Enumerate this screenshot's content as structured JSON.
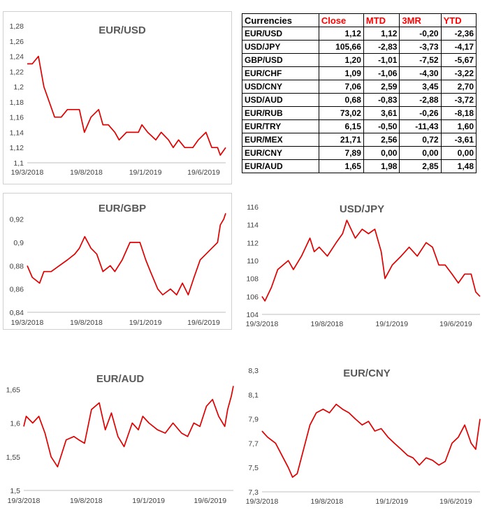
{
  "table": {
    "title": "Currencies",
    "headers": [
      "Close",
      "MTD",
      "3MR",
      "YTD"
    ],
    "rows": [
      {
        "pair": "EUR/USD",
        "values": [
          "1,12",
          "1,12",
          "-0,20",
          "-2,36"
        ]
      },
      {
        "pair": "USD/JPY",
        "values": [
          "105,66",
          "-2,83",
          "-3,73",
          "-4,17"
        ]
      },
      {
        "pair": "GBP/USD",
        "values": [
          "1,20",
          "-1,01",
          "-7,52",
          "-5,67"
        ]
      },
      {
        "pair": "EUR/CHF",
        "values": [
          "1,09",
          "-1,06",
          "-4,30",
          "-3,22"
        ]
      },
      {
        "pair": "USD/CNY",
        "values": [
          "7,06",
          "2,59",
          "3,45",
          "2,70"
        ]
      },
      {
        "pair": "USD/AUD",
        "values": [
          "0,68",
          "-0,83",
          "-2,88",
          "-3,72"
        ]
      },
      {
        "pair": "EUR/RUB",
        "values": [
          "73,02",
          "3,61",
          "-0,26",
          "-8,18"
        ]
      },
      {
        "pair": "EUR/TRY",
        "values": [
          "6,15",
          "-0,50",
          "-11,43",
          "1,60"
        ]
      },
      {
        "pair": "EUR/MEX",
        "values": [
          "21,71",
          "2,56",
          "0,72",
          "-3,61"
        ]
      },
      {
        "pair": "EUR/CNY",
        "values": [
          "7,89",
          "0,00",
          "0,00",
          "0,00"
        ]
      },
      {
        "pair": "EUR/AUD",
        "values": [
          "1,65",
          "1,98",
          "2,85",
          "1,48"
        ]
      }
    ]
  },
  "colors": {
    "line": "#e00000",
    "header_text": "#ff0000"
  },
  "chart_data": [
    {
      "type": "line",
      "title": "EUR/USD",
      "x_tick_labels": [
        "19/3/2018",
        "19/8/2018",
        "19/1/2019",
        "19/6/2019"
      ],
      "y_tick_labels": [
        "1,1",
        "1,12",
        "1,14",
        "1,16",
        "1,18",
        "1,2",
        "1,22",
        "1,24",
        "1,26",
        "1,28"
      ],
      "ylim": [
        1.1,
        1.28
      ],
      "xlim": [
        "2018-03-19",
        "2019-08-15"
      ],
      "grid": false,
      "series": [
        {
          "x": [
            "2018-03-19",
            "2018-04-01",
            "2018-04-17",
            "2018-05-01",
            "2018-05-15",
            "2018-05-29",
            "2018-06-15",
            "2018-07-01",
            "2018-07-15",
            "2018-08-01",
            "2018-08-14",
            "2018-08-31",
            "2018-09-20",
            "2018-10-01",
            "2018-10-15",
            "2018-11-01",
            "2018-11-12",
            "2018-12-01",
            "2018-12-15",
            "2019-01-01",
            "2019-01-10",
            "2019-01-25",
            "2019-02-15",
            "2019-03-01",
            "2019-03-20",
            "2019-04-01",
            "2019-04-15",
            "2019-05-01",
            "2019-05-22",
            "2019-06-05",
            "2019-06-25",
            "2019-07-10",
            "2019-07-25",
            "2019-08-01",
            "2019-08-15"
          ],
          "y": [
            1.23,
            1.23,
            1.24,
            1.2,
            1.18,
            1.16,
            1.16,
            1.17,
            1.17,
            1.17,
            1.14,
            1.16,
            1.17,
            1.15,
            1.15,
            1.14,
            1.13,
            1.14,
            1.14,
            1.14,
            1.15,
            1.14,
            1.13,
            1.14,
            1.13,
            1.12,
            1.13,
            1.12,
            1.12,
            1.13,
            1.14,
            1.12,
            1.12,
            1.11,
            1.12
          ]
        }
      ]
    },
    {
      "type": "line",
      "title": "EUR/GBP",
      "x_tick_labels": [
        "19/3/2018",
        "19/8/2018",
        "19/1/2019",
        "19/6/2019"
      ],
      "y_tick_labels": [
        "0,84",
        "0,86",
        "0,88",
        "0,9",
        "0,92"
      ],
      "ylim": [
        0.84,
        0.93
      ],
      "xlim": [
        "2018-03-19",
        "2019-08-15"
      ],
      "grid": false,
      "series": [
        {
          "x": [
            "2018-03-19",
            "2018-04-01",
            "2018-04-20",
            "2018-05-01",
            "2018-05-20",
            "2018-06-10",
            "2018-07-01",
            "2018-07-20",
            "2018-08-01",
            "2018-08-15",
            "2018-08-31",
            "2018-09-15",
            "2018-10-01",
            "2018-10-20",
            "2018-11-01",
            "2018-11-20",
            "2018-12-10",
            "2018-12-25",
            "2019-01-05",
            "2019-01-20",
            "2019-02-01",
            "2019-02-20",
            "2019-03-05",
            "2019-03-25",
            "2019-04-10",
            "2019-04-25",
            "2019-05-10",
            "2019-05-25",
            "2019-06-10",
            "2019-06-25",
            "2019-07-10",
            "2019-07-25",
            "2019-08-01",
            "2019-08-10",
            "2019-08-15"
          ],
          "y": [
            0.88,
            0.87,
            0.865,
            0.875,
            0.875,
            0.88,
            0.885,
            0.89,
            0.895,
            0.905,
            0.895,
            0.89,
            0.875,
            0.88,
            0.875,
            0.885,
            0.9,
            0.9,
            0.9,
            0.885,
            0.875,
            0.86,
            0.855,
            0.86,
            0.855,
            0.865,
            0.855,
            0.87,
            0.885,
            0.89,
            0.895,
            0.9,
            0.915,
            0.92,
            0.925
          ]
        }
      ]
    },
    {
      "type": "line",
      "title": "USD/JPY",
      "x_tick_labels": [
        "19/3/2018",
        "19/8/2018",
        "19/1/2019",
        "19/6/2019"
      ],
      "y_tick_labels": [
        "104",
        "106",
        "108",
        "110",
        "112",
        "114",
        "116"
      ],
      "ylim": [
        104,
        116
      ],
      "xlim": [
        "2018-03-19",
        "2019-08-15"
      ],
      "grid": false,
      "series": [
        {
          "x": [
            "2018-03-19",
            "2018-03-26",
            "2018-04-10",
            "2018-04-25",
            "2018-05-20",
            "2018-06-01",
            "2018-06-20",
            "2018-07-10",
            "2018-07-20",
            "2018-08-01",
            "2018-08-20",
            "2018-09-10",
            "2018-09-25",
            "2018-10-05",
            "2018-10-25",
            "2018-11-10",
            "2018-11-25",
            "2018-12-10",
            "2018-12-25",
            "2019-01-03",
            "2019-01-20",
            "2019-02-10",
            "2019-03-01",
            "2019-03-20",
            "2019-04-10",
            "2019-04-25",
            "2019-05-10",
            "2019-05-25",
            "2019-06-10",
            "2019-06-25",
            "2019-07-10",
            "2019-07-25",
            "2019-08-05",
            "2019-08-15"
          ],
          "y": [
            106,
            105.5,
            107,
            109,
            110,
            109,
            110.5,
            112.5,
            111,
            111.5,
            110.5,
            112,
            113,
            114.5,
            112.5,
            113.5,
            113,
            113.5,
            111,
            108,
            109.5,
            110.5,
            111.5,
            110.5,
            112,
            111.5,
            109.5,
            109.5,
            108.5,
            107.5,
            108.5,
            108.5,
            106.5,
            106
          ]
        }
      ]
    },
    {
      "type": "line",
      "title": "EUR/AUD",
      "x_tick_labels": [
        "19/3/2018",
        "19/8/2018",
        "19/1/2019",
        "19/6/2019"
      ],
      "y_tick_labels": [
        "1,5",
        "1,55",
        "1,6",
        "1,65"
      ],
      "ylim": [
        1.5,
        1.67
      ],
      "xlim": [
        "2018-03-19",
        "2019-08-15"
      ],
      "grid": false,
      "series": [
        {
          "x": [
            "2018-03-19",
            "2018-03-25",
            "2018-04-10",
            "2018-04-25",
            "2018-05-10",
            "2018-05-25",
            "2018-06-10",
            "2018-07-01",
            "2018-07-20",
            "2018-08-01",
            "2018-08-15",
            "2018-09-01",
            "2018-09-20",
            "2018-10-05",
            "2018-10-20",
            "2018-11-05",
            "2018-11-20",
            "2018-12-10",
            "2018-12-25",
            "2019-01-05",
            "2019-01-20",
            "2019-02-10",
            "2019-03-01",
            "2019-03-20",
            "2019-04-10",
            "2019-04-25",
            "2019-05-10",
            "2019-05-25",
            "2019-06-10",
            "2019-06-25",
            "2019-07-10",
            "2019-07-25",
            "2019-08-01",
            "2019-08-10",
            "2019-08-15"
          ],
          "y": [
            1.595,
            1.61,
            1.6,
            1.61,
            1.585,
            1.55,
            1.535,
            1.575,
            1.58,
            1.575,
            1.57,
            1.62,
            1.63,
            1.59,
            1.615,
            1.58,
            1.565,
            1.6,
            1.59,
            1.61,
            1.6,
            1.59,
            1.585,
            1.6,
            1.585,
            1.58,
            1.6,
            1.595,
            1.625,
            1.635,
            1.61,
            1.595,
            1.62,
            1.64,
            1.655
          ]
        }
      ]
    },
    {
      "type": "line",
      "title": "EUR/CNY",
      "x_tick_labels": [
        "19/3/2018",
        "19/8/2018",
        "19/1/2019",
        "19/6/2019"
      ],
      "y_tick_labels": [
        "7,3",
        "7,5",
        "7,7",
        "7,9",
        "8,1",
        "8,3"
      ],
      "ylim": [
        7.3,
        8.3
      ],
      "xlim": [
        "2018-03-19",
        "2019-08-15"
      ],
      "grid": false,
      "series": [
        {
          "x": [
            "2018-03-19",
            "2018-04-01",
            "2018-04-20",
            "2018-05-05",
            "2018-05-20",
            "2018-05-30",
            "2018-06-10",
            "2018-06-25",
            "2018-07-10",
            "2018-07-25",
            "2018-08-10",
            "2018-08-25",
            "2018-09-10",
            "2018-09-25",
            "2018-10-10",
            "2018-10-25",
            "2018-11-10",
            "2018-11-25",
            "2018-12-10",
            "2018-12-25",
            "2019-01-10",
            "2019-01-25",
            "2019-02-10",
            "2019-02-25",
            "2019-03-10",
            "2019-03-25",
            "2019-04-10",
            "2019-04-25",
            "2019-05-10",
            "2019-05-25",
            "2019-06-10",
            "2019-06-25",
            "2019-07-10",
            "2019-07-25",
            "2019-08-05",
            "2019-08-15"
          ],
          "y": [
            7.8,
            7.75,
            7.7,
            7.6,
            7.5,
            7.42,
            7.45,
            7.65,
            7.85,
            7.95,
            7.98,
            7.95,
            8.02,
            7.98,
            7.95,
            7.9,
            7.85,
            7.88,
            7.8,
            7.82,
            7.75,
            7.7,
            7.65,
            7.6,
            7.58,
            7.52,
            7.58,
            7.56,
            7.52,
            7.55,
            7.7,
            7.75,
            7.85,
            7.7,
            7.65,
            7.9
          ]
        }
      ]
    }
  ]
}
